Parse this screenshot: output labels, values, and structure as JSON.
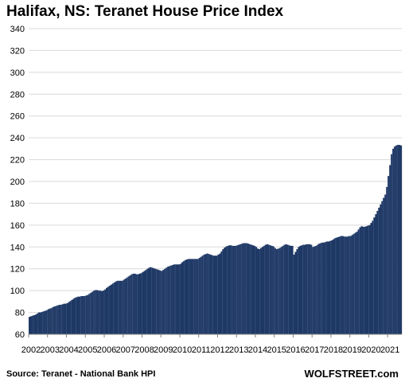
{
  "chart_data": {
    "type": "bar",
    "title": "Halifax, NS: Teranet House Price Index",
    "xlabel": "",
    "ylabel": "",
    "ylim": [
      60,
      340
    ],
    "yticks": [
      60,
      80,
      100,
      120,
      140,
      160,
      180,
      200,
      220,
      240,
      260,
      280,
      300,
      320,
      340
    ],
    "year_labels": [
      "2002",
      "2003",
      "2004",
      "2005",
      "2006",
      "2007",
      "2008",
      "2009",
      "2010",
      "2011",
      "2012",
      "2013",
      "2014",
      "2015",
      "2016",
      "2017",
      "2018",
      "2019",
      "2020",
      "2021"
    ],
    "frequency": "monthly",
    "start": "2002-01",
    "end": "2021-09",
    "grid": true,
    "bar_color": "#1f3864",
    "values": [
      76,
      76.5,
      77,
      77.5,
      78,
      79,
      80,
      80,
      80.5,
      81,
      81.5,
      82,
      83,
      83.5,
      84,
      85,
      85.5,
      86,
      86.5,
      87,
      87,
      87.5,
      88,
      88,
      88.5,
      89.5,
      90.5,
      91.5,
      92.5,
      93.5,
      94,
      94.5,
      94.5,
      95,
      95,
      95,
      95.5,
      96,
      97,
      98,
      99,
      100,
      100.5,
      100.5,
      100,
      100,
      99.5,
      100,
      101,
      102.5,
      103.5,
      104.5,
      105.5,
      106.5,
      107.5,
      108.5,
      109,
      109,
      109,
      109,
      110,
      111,
      112,
      113,
      114,
      115,
      115.5,
      115.5,
      115,
      115,
      115.5,
      116,
      117,
      118,
      119,
      120,
      121,
      121.5,
      121,
      120.5,
      120,
      119.5,
      119,
      118.5,
      118,
      119,
      120,
      121,
      122,
      122.5,
      123,
      123.5,
      124,
      124,
      124,
      124,
      124.5,
      126,
      127,
      128,
      128.5,
      129,
      129,
      129,
      129,
      129,
      129,
      129,
      130,
      131,
      132,
      133,
      133.5,
      134,
      133.5,
      133,
      132.5,
      132,
      132,
      132,
      133,
      134,
      136,
      138,
      139.5,
      140.5,
      141,
      141.5,
      141.5,
      141,
      141,
      141,
      141.5,
      142,
      142.5,
      143,
      143.5,
      143.5,
      143.5,
      143,
      142.5,
      142,
      141.5,
      141,
      140,
      138.5,
      138,
      139,
      140,
      141,
      142,
      142.5,
      142,
      141.5,
      141,
      140.5,
      139,
      138,
      138.5,
      139,
      140,
      141,
      142,
      142.5,
      142,
      141.5,
      141,
      141,
      133,
      135.5,
      138,
      140,
      141,
      141.5,
      142,
      142,
      142.5,
      142.5,
      142.5,
      142,
      140,
      140.5,
      141,
      142,
      143,
      143.5,
      144,
      144,
      144.5,
      145,
      145,
      145.5,
      146,
      147,
      148,
      148.5,
      149,
      149.5,
      150,
      150,
      149.5,
      149.5,
      149.5,
      150,
      150,
      151,
      152,
      153,
      154,
      156,
      158,
      159,
      158.5,
      158.5,
      159,
      159.5,
      160,
      162,
      164,
      167,
      170,
      173,
      176,
      179,
      182,
      185,
      188,
      195,
      205,
      215,
      225,
      230,
      232,
      233,
      233.5,
      233.5,
      233
    ]
  },
  "footer": {
    "source": "Source: Teranet - National Bank HPI",
    "brand": "WOLFSTREET.com"
  }
}
